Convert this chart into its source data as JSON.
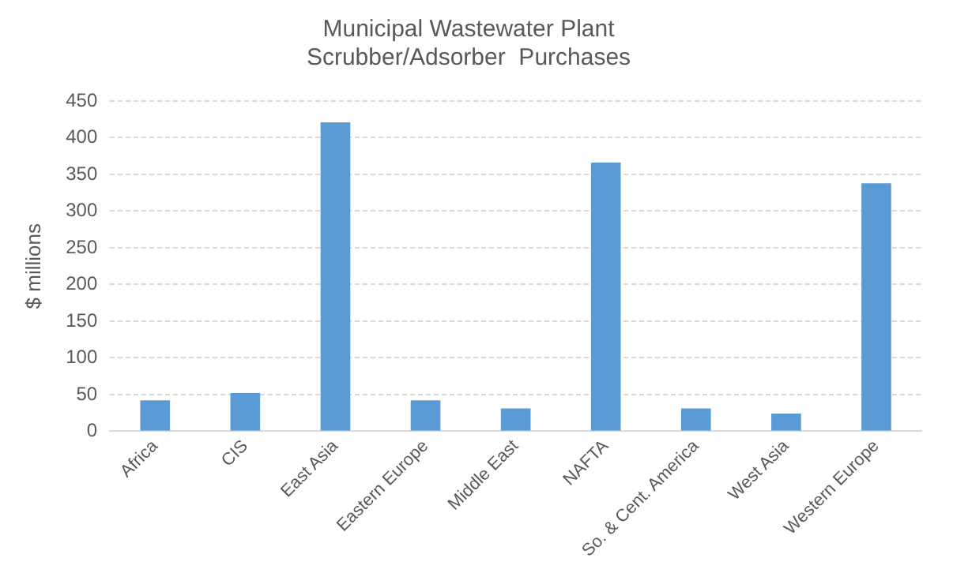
{
  "chart_data": {
    "type": "bar",
    "title": [
      "Municipal Wastewater Plant",
      "Scrubber/Adsorber  Purchases"
    ],
    "ylabel": "$ millions",
    "categories": [
      "Africa",
      "CIS",
      "East Asia",
      "Eastern Europe",
      "Middle East",
      "NAFTA",
      "So. & Cent. America",
      "West Asia",
      "Western Europe"
    ],
    "values": [
      42,
      52,
      421,
      42,
      31,
      366,
      31,
      24,
      338
    ],
    "color": "#5b9bd5",
    "ylim": [
      0,
      450
    ],
    "yticks": [
      0,
      50,
      100,
      150,
      200,
      250,
      300,
      350,
      400,
      450
    ],
    "grid": "y",
    "legend": false
  }
}
